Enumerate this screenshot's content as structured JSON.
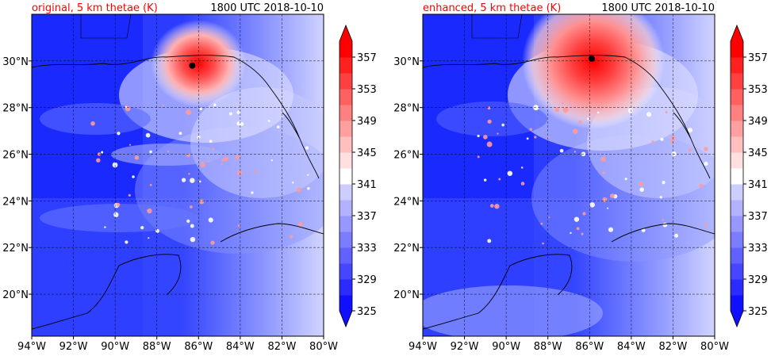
{
  "chart_data": [
    {
      "type": "heatmap",
      "title": "original, 5 km thetae (K)",
      "time_label": "1800 UTC 2018-10-10",
      "x_ticks": [
        "94°W",
        "92°W",
        "90°W",
        "88°W",
        "86°W",
        "84°W",
        "82°W",
        "80°W"
      ],
      "y_ticks": [
        "20°N",
        "22°N",
        "24°N",
        "26°N",
        "28°N",
        "30°N"
      ],
      "x_range_lon": [
        -94,
        -80
      ],
      "y_range_lat": [
        18.2,
        32
      ],
      "grid": true,
      "colorbar_ticks": [
        "325",
        "329",
        "333",
        "337",
        "341",
        "345",
        "349",
        "353",
        "357"
      ],
      "colorbar_range": [
        325,
        359
      ],
      "storm_center": {
        "lon": -86.3,
        "lat": 29.8
      },
      "field_desc": {
        "background_K": 331,
        "storm_peak_K": 360
      }
    },
    {
      "type": "heatmap",
      "title": "enhanced, 5 km thetae (K)",
      "time_label": "1800 UTC 2018-10-10",
      "x_ticks": [
        "94°W",
        "92°W",
        "90°W",
        "88°W",
        "86°W",
        "84°W",
        "82°W",
        "80°W"
      ],
      "y_ticks": [
        "20°N",
        "22°N",
        "24°N",
        "26°N",
        "28°N",
        "30°N"
      ],
      "x_range_lon": [
        -94,
        -80
      ],
      "y_range_lat": [
        18.2,
        32
      ],
      "grid": true,
      "colorbar_ticks": [
        "325",
        "329",
        "333",
        "337",
        "341",
        "345",
        "349",
        "353",
        "357"
      ],
      "colorbar_range": [
        325,
        359
      ],
      "storm_center": {
        "lon": -85.9,
        "lat": 30.1
      },
      "field_desc": {
        "background_K": 331,
        "storm_peak_K": 361
      }
    }
  ],
  "colors": {
    "title_red": "#ff0000",
    "cold": "#0010ff",
    "mid": "#e8e8ff",
    "warm": "#ff0000"
  }
}
